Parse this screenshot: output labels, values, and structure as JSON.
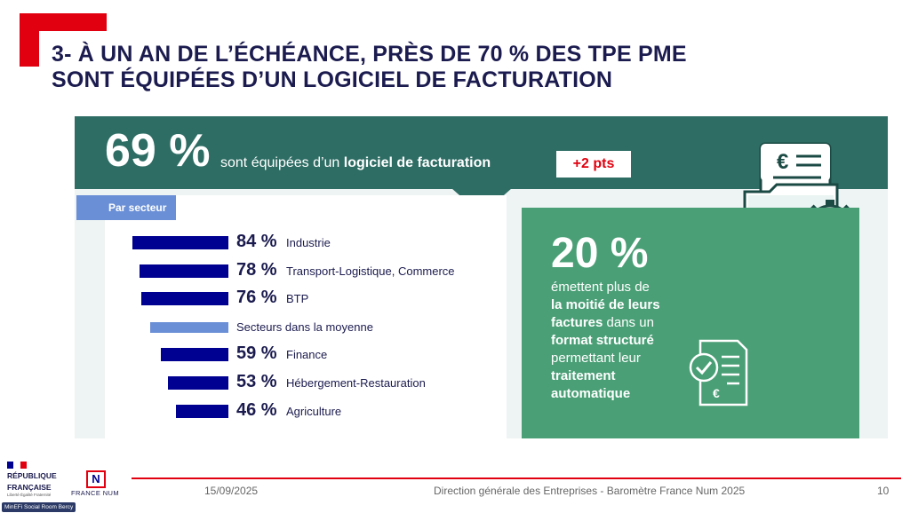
{
  "title": {
    "line1": "3- À UN AN DE L’ÉCHÉANCE, PRÈS DE 70 % DES TPE PME",
    "line2": "SONT ÉQUIPÉES D’UN LOGICIEL DE FACTURATION"
  },
  "banner": {
    "big_percent": "69 %",
    "text_prefix": "sont équipées d’un ",
    "text_bold": "logiciel de facturation",
    "badge": "+2 pts"
  },
  "sectors": {
    "tab_label": "Par secteur",
    "rows": [
      {
        "percent_label": "84 %",
        "label": "Industrie",
        "value": 84,
        "type": "sector"
      },
      {
        "percent_label": "78 %",
        "label": "Transport-Logistique, Commerce",
        "value": 78,
        "type": "sector"
      },
      {
        "percent_label": "76 %",
        "label": "BTP",
        "value": 76,
        "type": "sector"
      },
      {
        "percent_label": "",
        "label": "Secteurs dans la moyenne",
        "value": null,
        "type": "average"
      },
      {
        "percent_label": "59 %",
        "label": "Finance",
        "value": 59,
        "type": "sector"
      },
      {
        "percent_label": "53 %",
        "label": "Hébergement-Restauration",
        "value": 53,
        "type": "sector"
      },
      {
        "percent_label": "46 %",
        "label": "Agriculture",
        "value": 46,
        "type": "sector"
      }
    ]
  },
  "structured": {
    "big_percent": "20 %",
    "l1": "émettent plus de",
    "l2_bold": "la moitié de leurs",
    "l3_bold": "factures",
    "l3_rest": " dans un",
    "l4_bold": "format structuré",
    "l5": "permettant leur",
    "l6_bold": "traitement",
    "l7_bold": "automatique"
  },
  "icons": {
    "invoice_icon": "invoice-folder-gear-icon",
    "invoice_euro_glyph": "€",
    "checklist_icon": "checklist-document-icon",
    "checklist_euro_glyph": "€"
  },
  "footer": {
    "republic_line1": "RÉPUBLIQUE",
    "republic_line2": "FRANÇAISE",
    "motto": "Liberté Égalité Fraternité",
    "logo_letter": "N",
    "brand": "FRANCE NUM",
    "date": "15/09/2025",
    "source": "Direction générale des Entreprises - Baromètre France Num 2025",
    "page": "10",
    "room_tag": "MinEFi Social Room Bercy"
  },
  "colors": {
    "accent_red": "#e1000f",
    "navy": "#000091",
    "teal": "#2e6d64",
    "green": "#4a9f76",
    "light_blue": "#6a8fd6"
  }
}
